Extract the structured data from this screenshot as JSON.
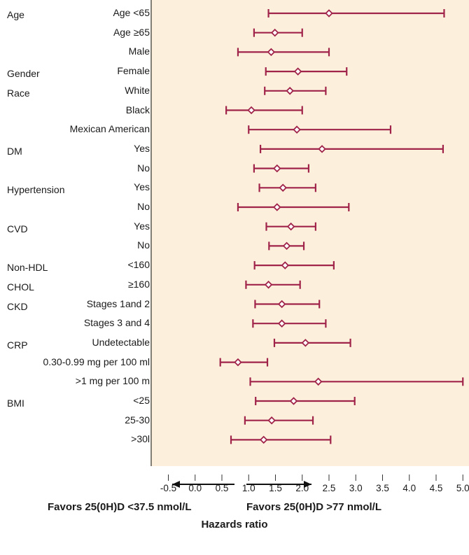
{
  "chart_data": {
    "type": "forest",
    "xlabel": "Hazards ratio",
    "xlim": [
      -0.5,
      5.5
    ],
    "xticks": [
      "-0.5",
      "0.0",
      "0.5",
      "1.0",
      "1.5",
      "2.0",
      "2.5",
      "3.0",
      "3.5",
      "4.0",
      "4.5",
      "5.0",
      "5.5"
    ],
    "favors_left": "Favors 25(0H)D <37.5 nmol/L",
    "favors_right": "Favors 25(0H)D >77 nmol/L",
    "groups": [
      {
        "label": "Age",
        "row": 0
      },
      {
        "label": "Gender",
        "row": 3
      },
      {
        "label": "Race",
        "row": 4
      },
      {
        "label": "DM",
        "row": 7
      },
      {
        "label": "Hypertension",
        "row": 9
      },
      {
        "label": "CVD",
        "row": 11
      },
      {
        "label": "Non-HDL",
        "row": 13
      },
      {
        "label": "CHOL",
        "row": 14
      },
      {
        "label": "CKD",
        "row": 15
      },
      {
        "label": "CRP",
        "row": 17
      },
      {
        "label": "BMI",
        "row": 20
      }
    ],
    "rows": [
      {
        "label": "Age <65",
        "hr": 2.5,
        "low": 1.37,
        "high": 4.65
      },
      {
        "label": "Age ≥65",
        "hr": 1.49,
        "low": 1.1,
        "high": 2.0
      },
      {
        "label": "Male",
        "hr": 1.42,
        "low": 0.8,
        "high": 2.5
      },
      {
        "label": "Female",
        "hr": 1.92,
        "low": 1.32,
        "high": 2.83
      },
      {
        "label": "White",
        "hr": 1.77,
        "low": 1.3,
        "high": 2.44
      },
      {
        "label": "Black",
        "hr": 1.05,
        "low": 0.58,
        "high": 2.0
      },
      {
        "label": "Mexican American",
        "hr": 1.9,
        "low": 1.0,
        "high": 3.65
      },
      {
        "label": "Yes",
        "hr": 2.37,
        "low": 1.22,
        "high": 4.63
      },
      {
        "label": "No",
        "hr": 1.53,
        "low": 1.1,
        "high": 2.12
      },
      {
        "label": "Yes",
        "hr": 1.64,
        "low": 1.2,
        "high": 2.25
      },
      {
        "label": "No",
        "hr": 1.53,
        "low": 0.8,
        "high": 2.87
      },
      {
        "label": "Yes",
        "hr": 1.79,
        "low": 1.33,
        "high": 2.25
      },
      {
        "label": "No",
        "hr": 1.71,
        "low": 1.38,
        "high": 2.03
      },
      {
        "label": "<160",
        "hr": 1.68,
        "low": 1.11,
        "high": 2.59
      },
      {
        "label": "≥160",
        "hr": 1.37,
        "low": 0.95,
        "high": 1.96
      },
      {
        "label": "Stages 1and 2",
        "hr": 1.62,
        "low": 1.12,
        "high": 2.32
      },
      {
        "label": "Stages 3 and 4",
        "hr": 1.62,
        "low": 1.08,
        "high": 2.44
      },
      {
        "label": "Undetectable",
        "hr": 2.06,
        "low": 1.48,
        "high": 2.9
      },
      {
        "label": "0.30-0.99 mg per 100 ml",
        "hr": 0.8,
        "low": 0.47,
        "high": 1.35
      },
      {
        "label": ">1 mg per 100 m",
        "hr": 2.3,
        "low": 1.03,
        "high": 5.0
      },
      {
        "label": "<25",
        "hr": 1.84,
        "low": 1.13,
        "high": 2.98
      },
      {
        "label": "25-30",
        "hr": 1.43,
        "low": 0.93,
        "high": 2.2
      },
      {
        "label": ">30l",
        "hr": 1.28,
        "low": 0.67,
        "high": 2.53
      }
    ],
    "colors": {
      "ci": "#a0234a",
      "background": "#fcf0dc",
      "axis": "#333333"
    }
  }
}
